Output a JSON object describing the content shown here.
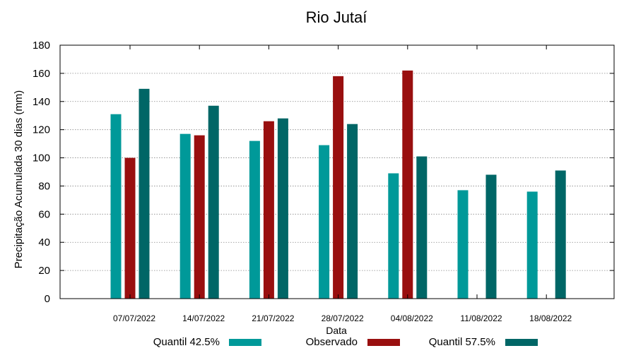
{
  "chart_data": {
    "type": "bar",
    "title": "Rio Jutaí",
    "xlabel": "Data",
    "ylabel": "Precipitação Acumulada 30 dias (mm)",
    "ylim": [
      0,
      180
    ],
    "yticks": [
      0,
      20,
      40,
      60,
      80,
      100,
      120,
      140,
      160,
      180
    ],
    "grid": true,
    "legend_position": "bottom",
    "categories": [
      "07/07/2022",
      "14/07/2022",
      "21/07/2022",
      "28/07/2022",
      "04/08/2022",
      "11/08/2022",
      "18/08/2022"
    ],
    "series": [
      {
        "name": "Quantil 42.5%",
        "color": "#009999",
        "values": [
          131,
          117,
          112,
          109,
          89,
          77,
          76
        ]
      },
      {
        "name": "Observado",
        "color": "#990f0f",
        "values": [
          100,
          116,
          126,
          158,
          162,
          null,
          null
        ]
      },
      {
        "name": "Quantil 57.5%",
        "color": "#006666",
        "values": [
          149,
          137,
          128,
          124,
          101,
          88,
          91
        ]
      }
    ]
  }
}
